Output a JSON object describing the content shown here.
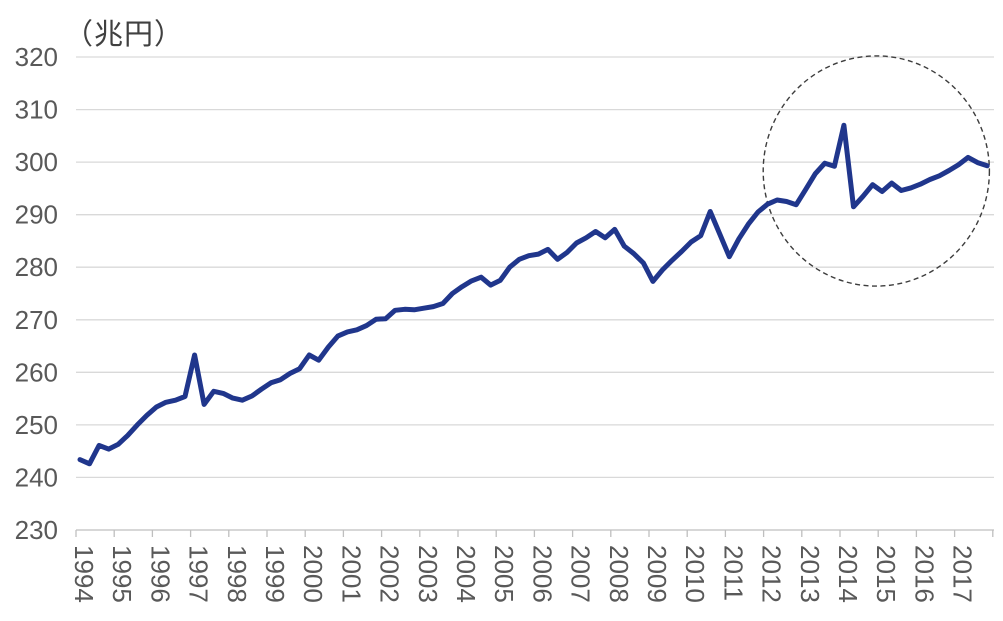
{
  "chart_data": {
    "type": "line",
    "title": "（兆円）",
    "frequency": "quarterly",
    "x_years": [
      1994,
      1995,
      1996,
      1997,
      1998,
      1999,
      2000,
      2001,
      2002,
      2003,
      2004,
      2005,
      2006,
      2007,
      2008,
      2009,
      2010,
      2011,
      2012,
      2013,
      2014,
      2015,
      2016,
      2017
    ],
    "values": [
      243.4,
      242.6,
      246.1,
      245.4,
      246.3,
      248.0,
      250.0,
      251.8,
      253.4,
      254.3,
      254.7,
      255.4,
      263.3,
      253.9,
      256.4,
      256.0,
      255.1,
      254.7,
      255.5,
      256.8,
      258.0,
      258.6,
      259.8,
      260.7,
      263.3,
      262.3,
      264.8,
      266.9,
      267.7,
      268.1,
      268.9,
      270.1,
      270.2,
      271.8,
      272.0,
      271.9,
      272.2,
      272.5,
      273.1,
      275.0,
      276.3,
      277.4,
      278.1,
      276.6,
      277.5,
      280.0,
      281.5,
      282.2,
      282.5,
      283.4,
      281.5,
      282.8,
      284.6,
      285.6,
      286.8,
      285.6,
      287.2,
      284.0,
      282.6,
      280.8,
      277.3,
      279.5,
      281.3,
      283.0,
      284.8,
      286.0,
      290.6,
      286.3,
      282.0,
      285.4,
      288.2,
      290.5,
      292.0,
      292.8,
      292.5,
      291.9,
      294.8,
      297.8,
      299.8,
      299.2,
      307.0,
      291.5,
      293.5,
      295.7,
      294.4,
      296.0,
      294.6,
      295.1,
      295.8,
      296.7,
      297.4,
      298.4,
      299.5,
      300.9,
      299.9,
      299.3
    ],
    "y_axis": {
      "min": 230,
      "max": 320,
      "ticks": [
        230,
        240,
        250,
        260,
        270,
        280,
        290,
        300,
        310,
        320
      ]
    },
    "grid": true,
    "legend": "none",
    "annotation": {
      "shape": "dashed-circle",
      "center_year": 2014.95,
      "center_value": 298.3,
      "radius_years": 2.96,
      "radius_value": 21.9
    },
    "colors": {
      "line": "#20368c",
      "gridline": "#d9d9d9",
      "axis": "#bfbfbf",
      "label": "#595959",
      "title": "#404040",
      "annotation": "#3d3d3d"
    }
  }
}
